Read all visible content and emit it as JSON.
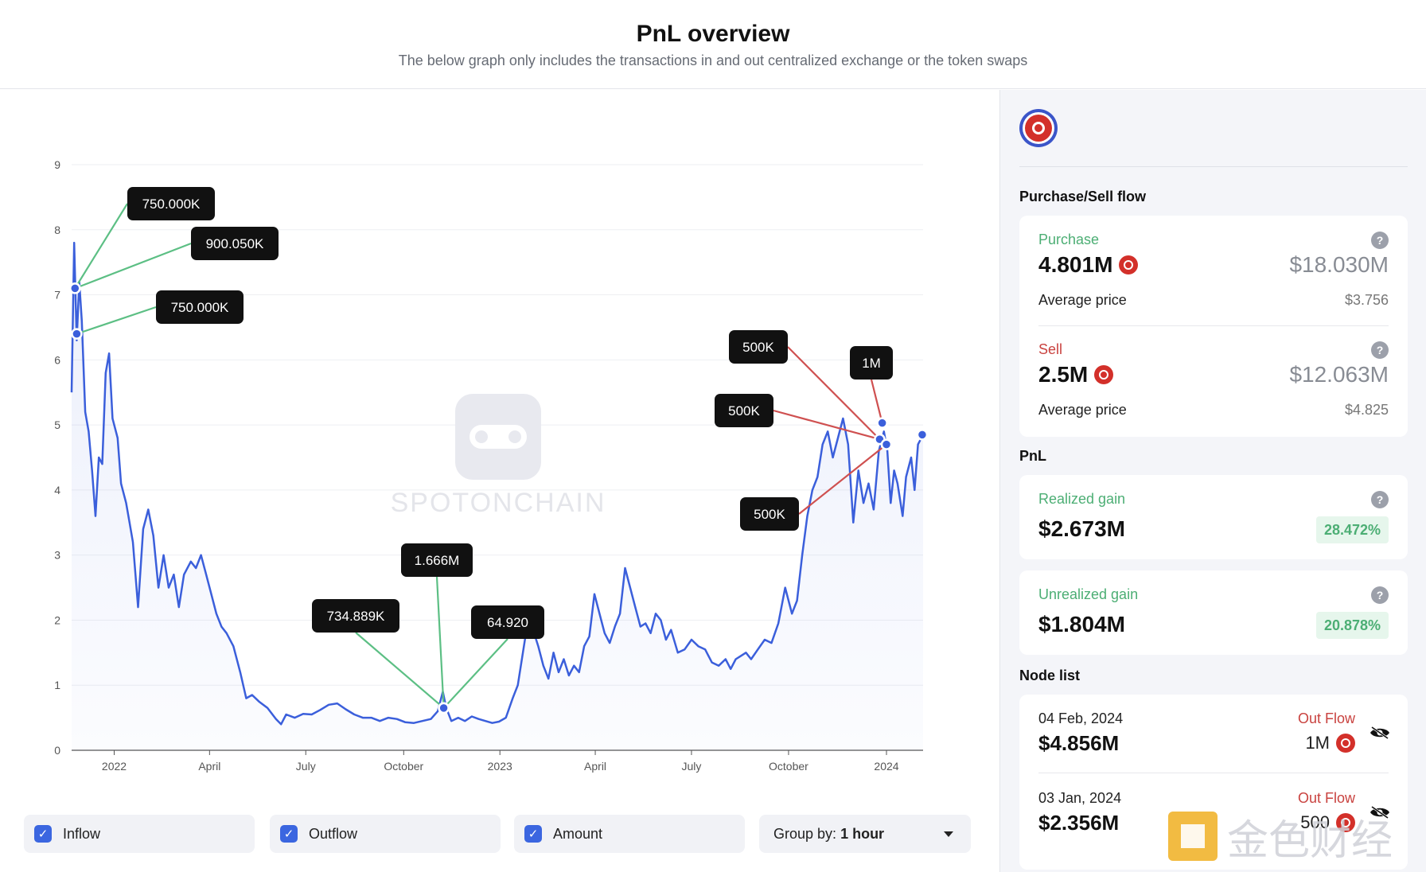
{
  "header": {
    "title": "PnL overview",
    "subtitle": "The below graph only includes the transactions in and out centralized exchange or the token swaps"
  },
  "watermark": {
    "center": "SPOTONCHAIN",
    "corner": "金色财经"
  },
  "chart_data": {
    "type": "line",
    "y_ticks": [
      "0",
      "1",
      "2",
      "3",
      "4",
      "5",
      "6",
      "7",
      "8",
      "9"
    ],
    "ylim": [
      0,
      9
    ],
    "x_ticks": [
      {
        "label": "2022",
        "t": 0.05
      },
      {
        "label": "April",
        "t": 0.162
      },
      {
        "label": "July",
        "t": 0.275
      },
      {
        "label": "October",
        "t": 0.39
      },
      {
        "label": "2023",
        "t": 0.503
      },
      {
        "label": "April",
        "t": 0.615
      },
      {
        "label": "July",
        "t": 0.728
      },
      {
        "label": "October",
        "t": 0.842
      },
      {
        "label": "2024",
        "t": 0.957
      }
    ],
    "series": [
      {
        "color": "#3b5fdb",
        "points": [
          [
            0.0,
            5.5
          ],
          [
            0.003,
            7.8
          ],
          [
            0.006,
            6.3
          ],
          [
            0.009,
            7.2
          ],
          [
            0.012,
            6.6
          ],
          [
            0.016,
            5.2
          ],
          [
            0.02,
            4.9
          ],
          [
            0.024,
            4.3
          ],
          [
            0.028,
            3.6
          ],
          [
            0.032,
            4.5
          ],
          [
            0.036,
            4.4
          ],
          [
            0.04,
            5.8
          ],
          [
            0.044,
            6.1
          ],
          [
            0.048,
            5.1
          ],
          [
            0.054,
            4.8
          ],
          [
            0.058,
            4.1
          ],
          [
            0.064,
            3.8
          ],
          [
            0.068,
            3.5
          ],
          [
            0.072,
            3.2
          ],
          [
            0.078,
            2.2
          ],
          [
            0.084,
            3.4
          ],
          [
            0.09,
            3.7
          ],
          [
            0.096,
            3.3
          ],
          [
            0.102,
            2.5
          ],
          [
            0.108,
            3.0
          ],
          [
            0.114,
            2.5
          ],
          [
            0.12,
            2.7
          ],
          [
            0.126,
            2.2
          ],
          [
            0.132,
            2.7
          ],
          [
            0.14,
            2.9
          ],
          [
            0.146,
            2.8
          ],
          [
            0.152,
            3.0
          ],
          [
            0.158,
            2.7
          ],
          [
            0.164,
            2.4
          ],
          [
            0.17,
            2.1
          ],
          [
            0.176,
            1.9
          ],
          [
            0.182,
            1.8
          ],
          [
            0.19,
            1.6
          ],
          [
            0.198,
            1.2
          ],
          [
            0.205,
            0.8
          ],
          [
            0.212,
            0.85
          ],
          [
            0.22,
            0.75
          ],
          [
            0.23,
            0.65
          ],
          [
            0.24,
            0.48
          ],
          [
            0.246,
            0.4
          ],
          [
            0.252,
            0.55
          ],
          [
            0.262,
            0.5
          ],
          [
            0.272,
            0.56
          ],
          [
            0.282,
            0.55
          ],
          [
            0.292,
            0.62
          ],
          [
            0.302,
            0.7
          ],
          [
            0.312,
            0.72
          ],
          [
            0.322,
            0.63
          ],
          [
            0.332,
            0.55
          ],
          [
            0.342,
            0.5
          ],
          [
            0.352,
            0.5
          ],
          [
            0.362,
            0.45
          ],
          [
            0.372,
            0.5
          ],
          [
            0.382,
            0.48
          ],
          [
            0.392,
            0.43
          ],
          [
            0.402,
            0.42
          ],
          [
            0.412,
            0.45
          ],
          [
            0.422,
            0.48
          ],
          [
            0.43,
            0.6
          ],
          [
            0.436,
            0.9
          ],
          [
            0.44,
            0.65
          ],
          [
            0.446,
            0.45
          ],
          [
            0.454,
            0.5
          ],
          [
            0.462,
            0.45
          ],
          [
            0.47,
            0.52
          ],
          [
            0.478,
            0.48
          ],
          [
            0.486,
            0.45
          ],
          [
            0.494,
            0.42
          ],
          [
            0.502,
            0.44
          ],
          [
            0.51,
            0.5
          ],
          [
            0.518,
            0.8
          ],
          [
            0.524,
            1.0
          ],
          [
            0.53,
            1.5
          ],
          [
            0.536,
            2.0
          ],
          [
            0.542,
            1.85
          ],
          [
            0.548,
            1.6
          ],
          [
            0.554,
            1.3
          ],
          [
            0.56,
            1.1
          ],
          [
            0.566,
            1.5
          ],
          [
            0.572,
            1.2
          ],
          [
            0.578,
            1.4
          ],
          [
            0.584,
            1.15
          ],
          [
            0.59,
            1.3
          ],
          [
            0.596,
            1.2
          ],
          [
            0.602,
            1.6
          ],
          [
            0.608,
            1.75
          ],
          [
            0.614,
            2.4
          ],
          [
            0.62,
            2.1
          ],
          [
            0.626,
            1.8
          ],
          [
            0.632,
            1.65
          ],
          [
            0.638,
            1.9
          ],
          [
            0.644,
            2.1
          ],
          [
            0.65,
            2.8
          ],
          [
            0.656,
            2.5
          ],
          [
            0.662,
            2.2
          ],
          [
            0.668,
            1.9
          ],
          [
            0.674,
            1.95
          ],
          [
            0.68,
            1.8
          ],
          [
            0.686,
            2.1
          ],
          [
            0.692,
            2.0
          ],
          [
            0.698,
            1.7
          ],
          [
            0.704,
            1.85
          ],
          [
            0.712,
            1.5
          ],
          [
            0.72,
            1.55
          ],
          [
            0.728,
            1.7
          ],
          [
            0.736,
            1.6
          ],
          [
            0.744,
            1.55
          ],
          [
            0.752,
            1.35
          ],
          [
            0.76,
            1.3
          ],
          [
            0.768,
            1.4
          ],
          [
            0.774,
            1.25
          ],
          [
            0.78,
            1.4
          ],
          [
            0.786,
            1.45
          ],
          [
            0.792,
            1.5
          ],
          [
            0.798,
            1.4
          ],
          [
            0.806,
            1.55
          ],
          [
            0.814,
            1.7
          ],
          [
            0.822,
            1.65
          ],
          [
            0.83,
            1.95
          ],
          [
            0.838,
            2.5
          ],
          [
            0.846,
            2.1
          ],
          [
            0.852,
            2.3
          ],
          [
            0.858,
            3.0
          ],
          [
            0.864,
            3.6
          ],
          [
            0.87,
            4.0
          ],
          [
            0.876,
            4.2
          ],
          [
            0.882,
            4.7
          ],
          [
            0.888,
            4.9
          ],
          [
            0.894,
            4.5
          ],
          [
            0.9,
            4.8
          ],
          [
            0.906,
            5.1
          ],
          [
            0.912,
            4.7
          ],
          [
            0.918,
            3.5
          ],
          [
            0.924,
            4.3
          ],
          [
            0.93,
            3.8
          ],
          [
            0.936,
            4.1
          ],
          [
            0.942,
            3.7
          ],
          [
            0.948,
            4.6
          ],
          [
            0.954,
            4.9
          ],
          [
            0.958,
            4.6
          ],
          [
            0.962,
            3.8
          ],
          [
            0.966,
            4.3
          ],
          [
            0.97,
            4.1
          ],
          [
            0.976,
            3.6
          ],
          [
            0.98,
            4.2
          ],
          [
            0.986,
            4.5
          ],
          [
            0.99,
            4.0
          ],
          [
            0.994,
            4.7
          ],
          [
            1.0,
            4.85
          ]
        ]
      }
    ],
    "annotations": [
      {
        "label": "750.000K",
        "type": "inflow",
        "x": 0.004,
        "y": 7.1
      },
      {
        "label": "900.050K",
        "type": "inflow",
        "x": 0.004,
        "y": 7.1
      },
      {
        "label": "750.000K",
        "type": "inflow",
        "x": 0.006,
        "y": 6.4
      },
      {
        "label": "734.889K",
        "type": "inflow",
        "x": 0.437,
        "y": 0.65
      },
      {
        "label": "1.666M",
        "type": "inflow",
        "x": 0.437,
        "y": 0.65
      },
      {
        "label": "64.920",
        "type": "inflow",
        "x": 0.437,
        "y": 0.65
      },
      {
        "label": "500K",
        "type": "outflow",
        "x": 0.949,
        "y": 4.78
      },
      {
        "label": "1M",
        "type": "outflow",
        "x": 0.952,
        "y": 5.03
      },
      {
        "label": "500K",
        "type": "outflow",
        "x": 0.949,
        "y": 4.78
      },
      {
        "label": "500K",
        "type": "outflow",
        "x": 0.957,
        "y": 4.7
      },
      {
        "label": "",
        "type": "outflow",
        "x": 0.999,
        "y": 4.85
      }
    ]
  },
  "controls": {
    "inflow": "Inflow",
    "outflow": "Outflow",
    "amount": "Amount",
    "group_prefix": "Group by:",
    "group_value": "1 hour",
    "check": "✓"
  },
  "sidebar": {
    "flow_title": "Purchase/Sell flow",
    "purchase": {
      "label": "Purchase",
      "amount": "4.801M",
      "usd": "$18.030M",
      "avg_label": "Average price",
      "avg_value": "$3.756"
    },
    "sell": {
      "label": "Sell",
      "amount": "2.5M",
      "usd": "$12.063M",
      "avg_label": "Average price",
      "avg_value": "$4.825"
    },
    "pnl_title": "PnL",
    "realized": {
      "label": "Realized gain",
      "value": "$2.673M",
      "pct": "28.472%"
    },
    "unrealized": {
      "label": "Unrealized gain",
      "value": "$1.804M",
      "pct": "20.878%"
    },
    "node_title": "Node list",
    "nodes": [
      {
        "date": "04 Feb, 2024",
        "flow": "Out Flow",
        "value": "$4.856M",
        "token_amt": "1M"
      },
      {
        "date": "03 Jan, 2024",
        "flow": "Out Flow",
        "value": "$2.356M",
        "token_amt": "500"
      }
    ],
    "help": "?"
  },
  "colors": {
    "line": "#3b5fdb",
    "inflow": "#5cbf84",
    "outflow": "#cf5050",
    "accent": "#3b66e0"
  }
}
